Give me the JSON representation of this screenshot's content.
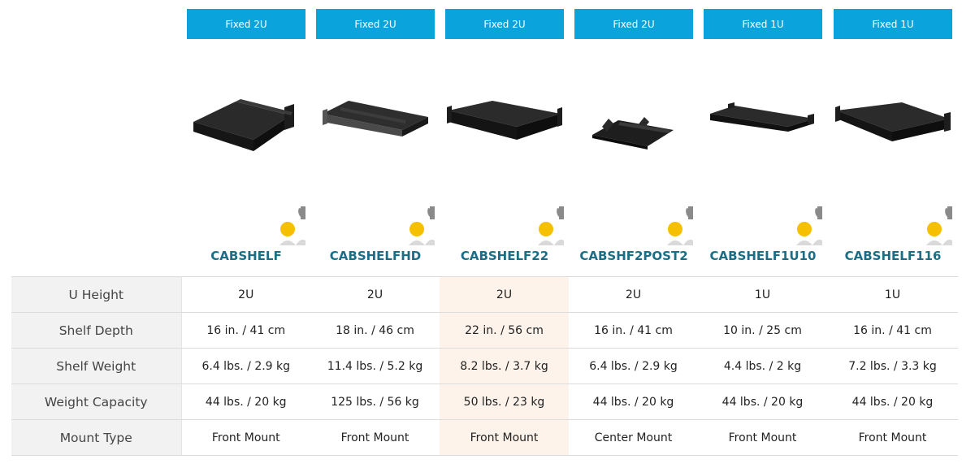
{
  "products": [
    {
      "badge": "Fixed 2U",
      "model": "CABSHELF"
    },
    {
      "badge": "Fixed 2U",
      "model": "CABSHELFHD"
    },
    {
      "badge": "Fixed 2U",
      "model": "CABSHELF22"
    },
    {
      "badge": "Fixed 2U",
      "model": "CABSHF2POST2"
    },
    {
      "badge": "Fixed 1U",
      "model": "CABSHELF1U10"
    },
    {
      "badge": "Fixed 1U",
      "model": "CABSHELF116"
    }
  ],
  "icons": {
    "product_image": "rack-shelf-image",
    "brand": "brand-logo-icon"
  },
  "colors": {
    "badge": "#0aa3dc",
    "model_text": "#1b6e86",
    "highlight_column": "#fdf3ea",
    "label_background": "#f2f2f2"
  },
  "specs": [
    {
      "label": "U Height",
      "values": [
        "2U",
        "2U",
        "2U",
        "2U",
        "1U",
        "1U"
      ]
    },
    {
      "label": "Shelf Depth",
      "values": [
        "16 in. / 41 cm",
        "18 in. / 46 cm",
        "22 in. / 56 cm",
        "16 in. / 41 cm",
        "10 in. / 25 cm",
        "16 in. / 41 cm"
      ]
    },
    {
      "label": "Shelf Weight",
      "values": [
        "6.4 lbs. / 2.9 kg",
        "11.4 lbs. / 5.2 kg",
        "8.2 lbs. / 3.7 kg",
        "6.4 lbs. / 2.9 kg",
        "4.4 lbs. / 2 kg",
        "7.2 lbs. / 3.3 kg"
      ]
    },
    {
      "label": "Weight Capacity",
      "values": [
        "44 lbs. / 20 kg",
        "125 lbs. / 56 kg",
        "50 lbs. / 23 kg",
        "44 lbs. / 20 kg",
        "44 lbs. / 20 kg",
        "44 lbs. / 20 kg"
      ]
    },
    {
      "label": "Mount Type",
      "values": [
        "Front Mount",
        "Front Mount",
        "Front Mount",
        "Center Mount",
        "Front Mount",
        "Front Mount"
      ]
    }
  ]
}
